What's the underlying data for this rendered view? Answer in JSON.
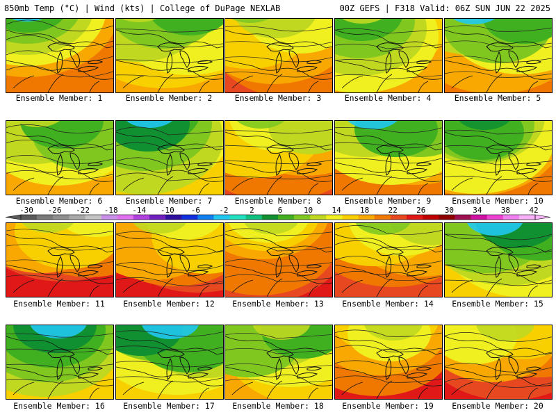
{
  "header": {
    "title_left": "850mb Temp (°C) | Wind (kts) | College of DuPage NEXLAB",
    "title_right": "00Z GEFS | F318 Valid: 06Z SUN JUN 22 2025"
  },
  "panels": [
    {
      "label": "Ensemble Member: 1",
      "theme": "cool"
    },
    {
      "label": "Ensemble Member: 2",
      "theme": "mild"
    },
    {
      "label": "Ensemble Member: 3",
      "theme": "warm"
    },
    {
      "label": "Ensemble Member: 4",
      "theme": "mild"
    },
    {
      "label": "Ensemble Member: 5",
      "theme": "cool"
    },
    {
      "label": "Ensemble Member: 6",
      "theme": "mild"
    },
    {
      "label": "Ensemble Member: 7",
      "theme": "green"
    },
    {
      "label": "Ensemble Member: 8",
      "theme": "warm"
    },
    {
      "label": "Ensemble Member: 9",
      "theme": "cool"
    },
    {
      "label": "Ensemble Member: 10",
      "theme": "mixed"
    },
    {
      "label": "Ensemble Member: 11",
      "theme": "hot"
    },
    {
      "label": "Ensemble Member: 12",
      "theme": "hot"
    },
    {
      "label": "Ensemble Member: 13",
      "theme": "hot"
    },
    {
      "label": "Ensemble Member: 14",
      "theme": "warm"
    },
    {
      "label": "Ensemble Member: 15",
      "theme": "green"
    },
    {
      "label": "Ensemble Member: 16",
      "theme": "green"
    },
    {
      "label": "Ensemble Member: 17",
      "theme": "green"
    },
    {
      "label": "Ensemble Member: 18",
      "theme": "mild"
    },
    {
      "label": "Ensemble Member: 19",
      "theme": "hot"
    },
    {
      "label": "Ensemble Member: 20",
      "theme": "hot"
    }
  ],
  "colorbar": {
    "ticks": [
      "-30",
      "-26",
      "-22",
      "-18",
      "-14",
      "-10",
      "-6",
      "-2",
      "2",
      "6",
      "10",
      "14",
      "18",
      "22",
      "26",
      "30",
      "34",
      "38",
      "42"
    ],
    "colors": [
      "#5a5a5a",
      "#7a7a7a",
      "#8f8f8f",
      "#a8a8a8",
      "#c4c4c4",
      "#c890e6",
      "#e070f0",
      "#b040e0",
      "#7020c0",
      "#3010a0",
      "#1030e0",
      "#1080f0",
      "#20c8f0",
      "#20e0c0",
      "#10c080",
      "#109030",
      "#40b020",
      "#80c820",
      "#c0d820",
      "#f0f020",
      "#f8d000",
      "#f8a800",
      "#f07800",
      "#e84820",
      "#e01818",
      "#c00000",
      "#900000",
      "#a01050",
      "#d010a0",
      "#f040d0",
      "#f080f0",
      "#f8b0f8"
    ]
  }
}
